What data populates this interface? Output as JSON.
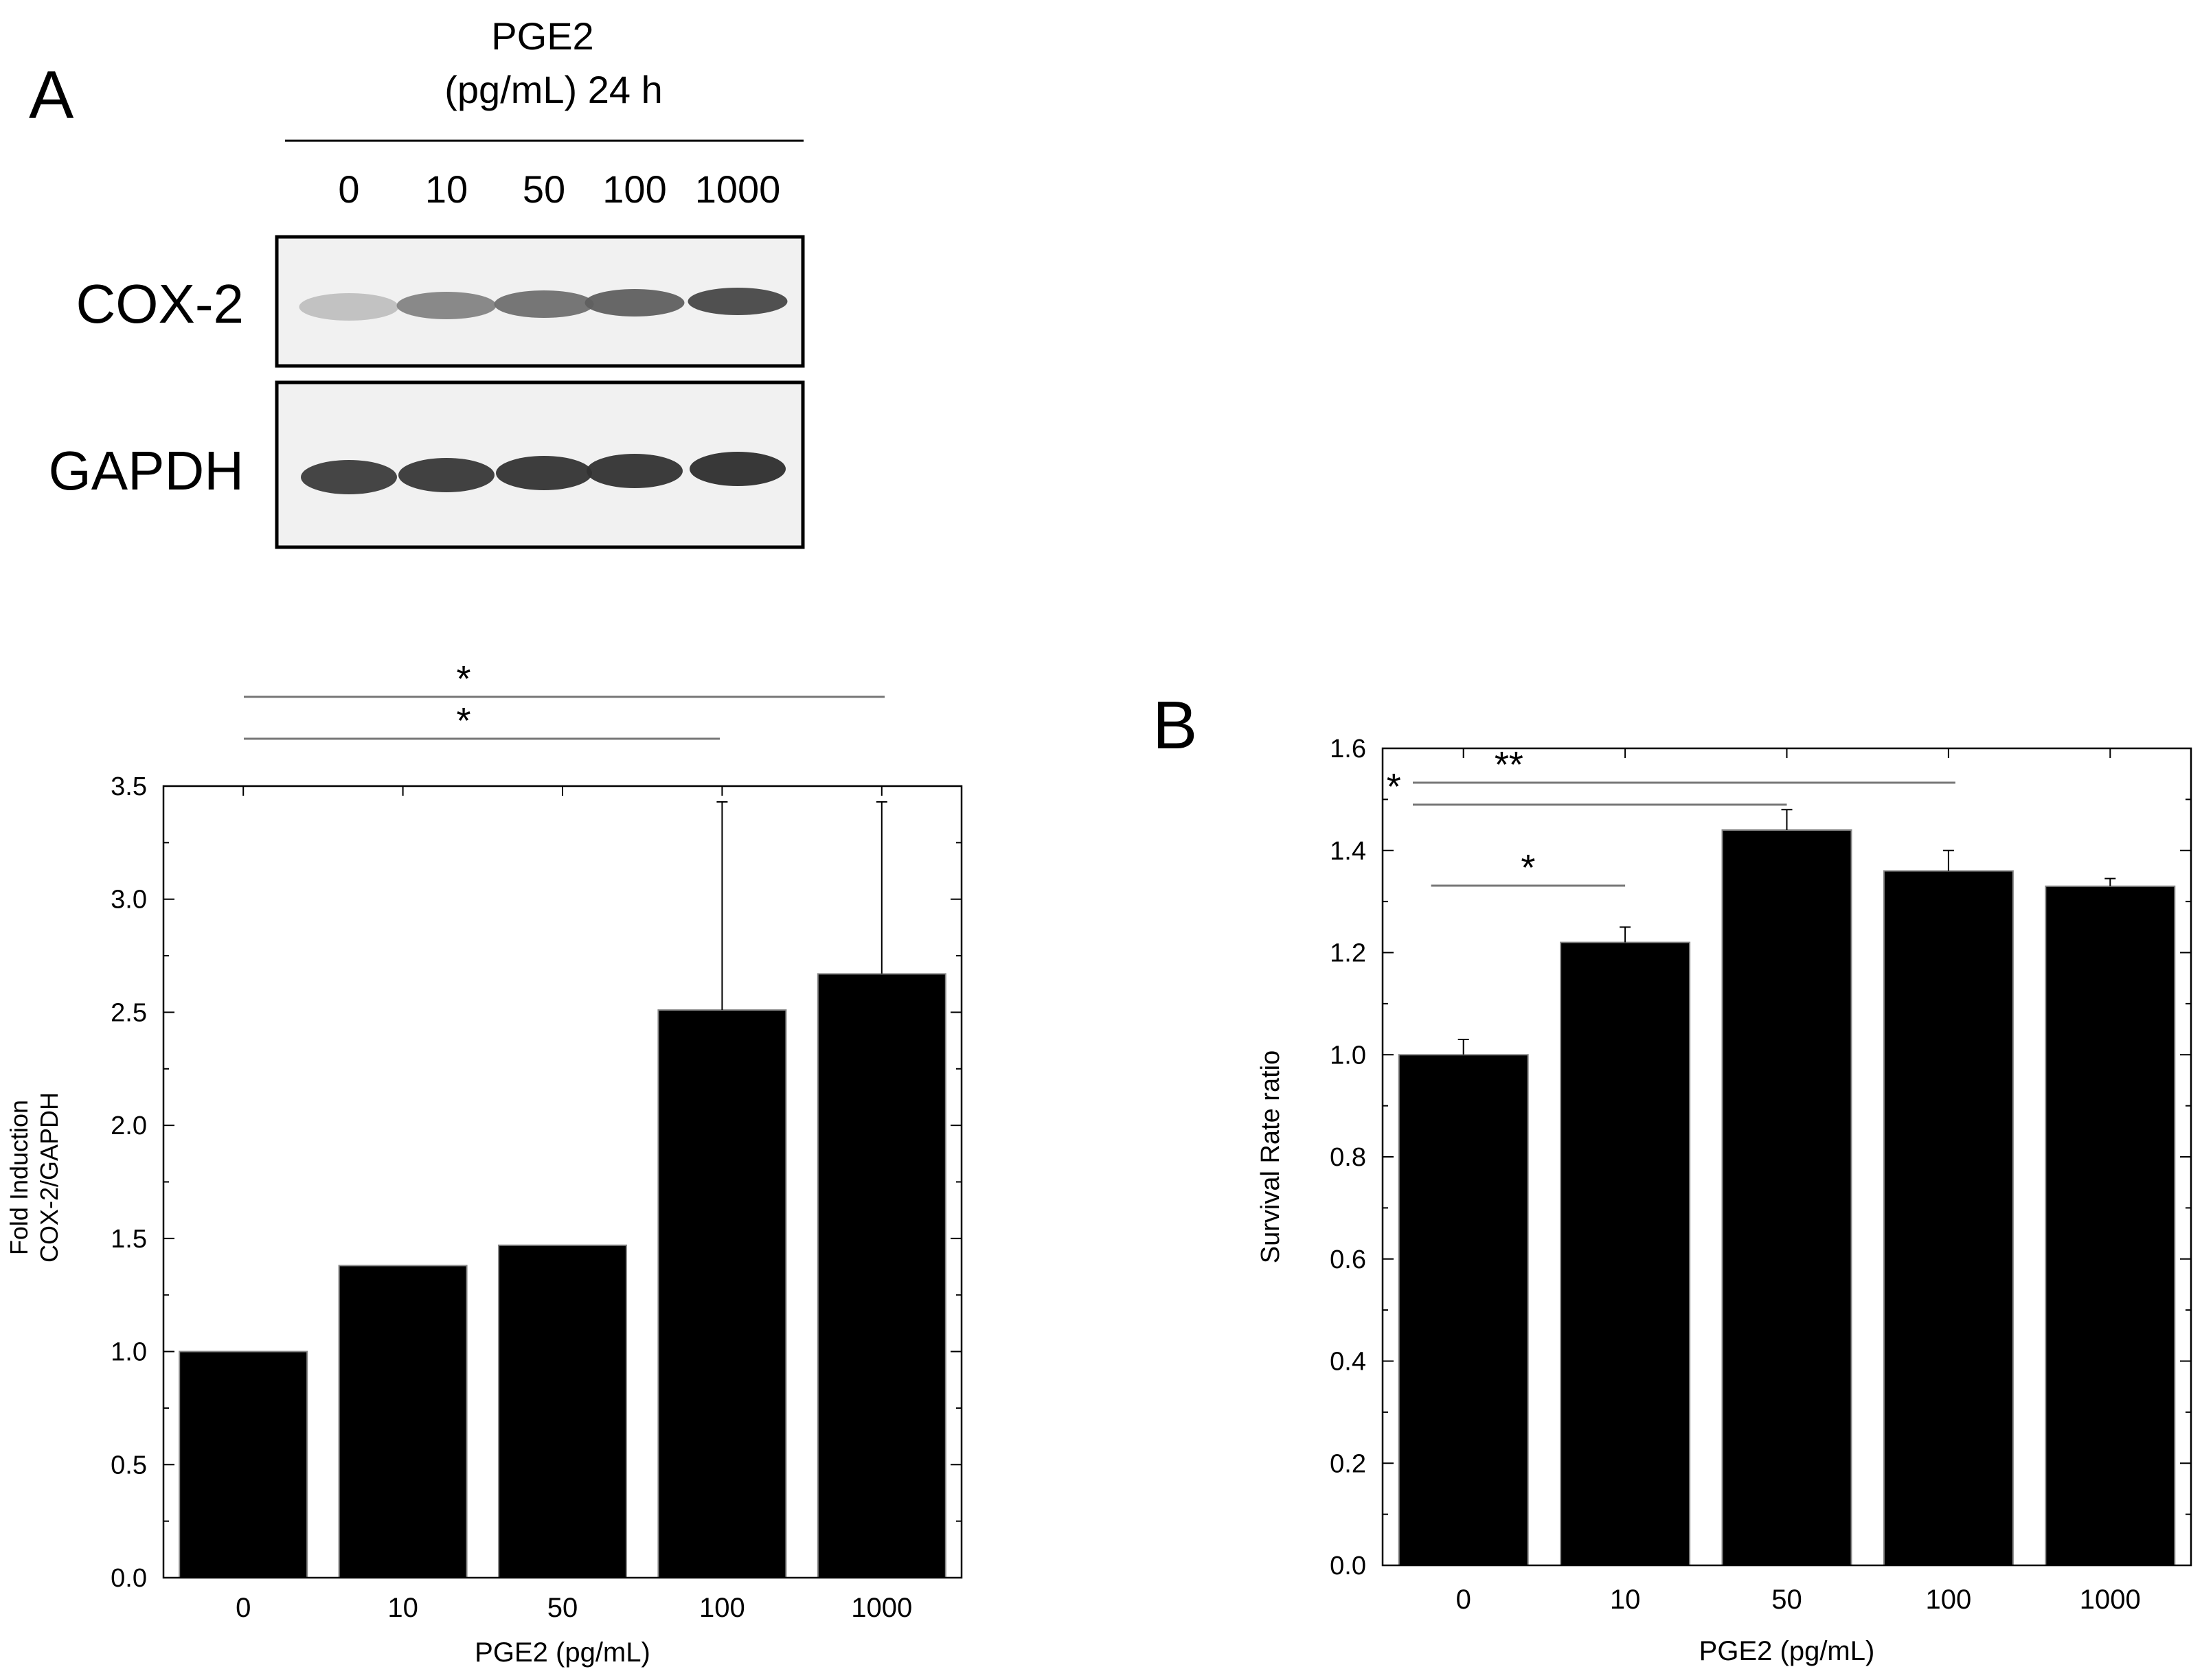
{
  "panel_a": {
    "label": "A",
    "treatment": {
      "line1": "PGE2",
      "line2": "(pg/mL) 24 h"
    },
    "lanes": [
      "0",
      "10",
      "50",
      "100",
      "1000"
    ],
    "blots": [
      {
        "label": "COX-2",
        "band_intensity": [
          0.22,
          0.52,
          0.62,
          0.7,
          0.82
        ]
      },
      {
        "label": "GAPDH",
        "band_intensity": [
          0.88,
          0.9,
          0.92,
          0.93,
          0.95
        ]
      }
    ]
  },
  "panel_b": {
    "label": "B"
  },
  "chart_data": [
    {
      "id": "chartA",
      "type": "bar",
      "title": "",
      "categories": [
        "0",
        "10",
        "50",
        "100",
        "1000"
      ],
      "values": [
        1.0,
        1.38,
        1.47,
        2.51,
        2.67
      ],
      "errors": [
        null,
        null,
        null,
        0.92,
        0.76
      ],
      "xlabel": "PGE2 (pg/mL)",
      "ylabel": [
        "Fold Induction",
        "COX-2/GAPDH"
      ],
      "ylim": [
        0,
        3.5
      ],
      "yticks": [
        0,
        0.5,
        1.0,
        1.5,
        2.0,
        2.5,
        3.0,
        3.5
      ],
      "tick_decimals": 1,
      "grid": false,
      "significance": [
        {
          "from": 0,
          "to": 4,
          "label": "*"
        },
        {
          "from": 0,
          "to": 3,
          "label": "*"
        }
      ]
    },
    {
      "id": "chartB",
      "type": "bar",
      "title": "",
      "categories": [
        "0",
        "10",
        "50",
        "100",
        "1000"
      ],
      "values": [
        1.0,
        1.22,
        1.44,
        1.36,
        1.33
      ],
      "errors": [
        0.03,
        0.03,
        0.04,
        0.04,
        0.015
      ],
      "xlabel": "PGE2 (pg/mL)",
      "ylabel": [
        "Survival Rate ratio"
      ],
      "ylim": [
        0,
        1.6
      ],
      "yticks": [
        0,
        0.2,
        0.4,
        0.6,
        0.8,
        1.0,
        1.2,
        1.4,
        1.6
      ],
      "tick_decimals": 1,
      "grid": false,
      "significance": [
        {
          "from": 0,
          "to": 3,
          "label": "**"
        },
        {
          "from": 0,
          "to": 2,
          "label": "*"
        },
        {
          "from": 0,
          "to": 1,
          "label": "*"
        }
      ]
    }
  ]
}
